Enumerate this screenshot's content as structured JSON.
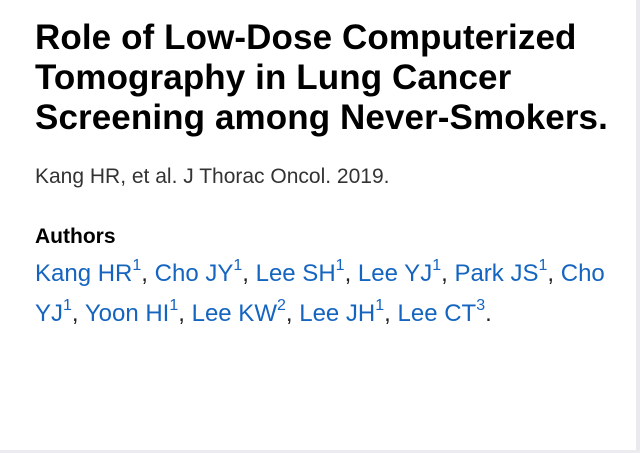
{
  "article": {
    "title": "Role of Low-Dose Computerized Tomography in Lung Cancer Screening among Never-Smokers.",
    "citation": "Kang HR, et al. J Thorac Oncol. 2019."
  },
  "authors_section": {
    "heading": "Authors",
    "authors": [
      {
        "name": "Kang HR",
        "affiliation": "1"
      },
      {
        "name": "Cho JY",
        "affiliation": "1"
      },
      {
        "name": "Lee SH",
        "affiliation": "1"
      },
      {
        "name": "Lee YJ",
        "affiliation": "1"
      },
      {
        "name": "Park JS",
        "affiliation": "1"
      },
      {
        "name": "Cho YJ",
        "affiliation": "1"
      },
      {
        "name": "Yoon HI",
        "affiliation": "1"
      },
      {
        "name": "Lee KW",
        "affiliation": "2"
      },
      {
        "name": "Lee JH",
        "affiliation": "1"
      },
      {
        "name": "Lee CT",
        "affiliation": "3"
      }
    ],
    "separator": ", ",
    "terminator": "."
  }
}
